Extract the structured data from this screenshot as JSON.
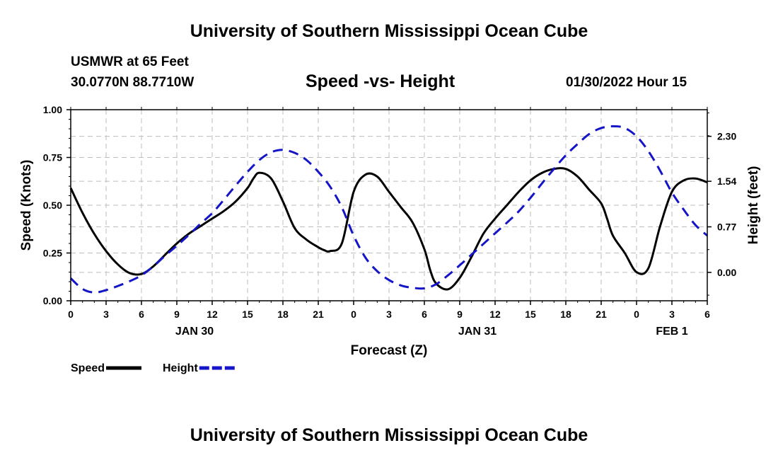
{
  "header": {
    "title": "University of Southern Mississippi Ocean Cube",
    "station": "USMWR at 65 Feet",
    "coords": "30.0770N  88.7710W",
    "datetime": "01/30/2022 Hour 15"
  },
  "footer": {
    "title": "University of Southern Mississippi Ocean Cube"
  },
  "colors": {
    "speed": "#000000",
    "height": "#1515c8",
    "grid": "#bdbdbd"
  },
  "chart_data": {
    "type": "line",
    "title": "Speed -vs- Height",
    "xlabel": "Forecast (Z)",
    "ylabel": "Speed (Knots)",
    "y2label": "Height (feet)",
    "xlim": [
      0,
      54
    ],
    "ylim": [
      0,
      1
    ],
    "y2lim": [
      -0.48,
      2.75
    ],
    "x_tick_labels": [
      "0",
      "3",
      "6",
      "9",
      "12",
      "15",
      "18",
      "21",
      "0",
      "3",
      "6",
      "9",
      "12",
      "15",
      "18",
      "21",
      "0",
      "3",
      "6"
    ],
    "y_ticks": [
      0,
      0.25,
      0.5,
      0.75,
      1.0
    ],
    "y_tick_labels": [
      "0.00",
      "0.25",
      "0.50",
      "0.75",
      "1.00"
    ],
    "y2_ticks": [
      0,
      0.77,
      1.54,
      2.3
    ],
    "y2_tick_labels": [
      "0.00",
      "0.77",
      "1.54",
      "2.30"
    ],
    "date_labels": [
      {
        "text": "JAN 30",
        "x": 10.5
      },
      {
        "text": "JAN 31",
        "x": 34.5
      },
      {
        "text": "FEB 1",
        "x": 51
      }
    ],
    "grid": true,
    "legend_position": "bottom-left",
    "series": [
      {
        "name": "Speed",
        "axis": "left",
        "style": "solid",
        "x": [
          0,
          1,
          2,
          3,
          4,
          5,
          6,
          7,
          8,
          9,
          10,
          11,
          12,
          13,
          14,
          15,
          15.5,
          16,
          17,
          18,
          19,
          20,
          21,
          21.5,
          22,
          23,
          24,
          25,
          26,
          27,
          28,
          29,
          30,
          30.5,
          31,
          32,
          33,
          34,
          35,
          36,
          37,
          38,
          39,
          40,
          41,
          42,
          43,
          44,
          45,
          45.5,
          46,
          47,
          48,
          49,
          50,
          51,
          52,
          53,
          54
        ],
        "values": [
          0.59,
          0.46,
          0.35,
          0.26,
          0.19,
          0.145,
          0.14,
          0.18,
          0.24,
          0.3,
          0.35,
          0.39,
          0.43,
          0.47,
          0.52,
          0.59,
          0.64,
          0.67,
          0.64,
          0.52,
          0.38,
          0.32,
          0.28,
          0.265,
          0.26,
          0.3,
          0.57,
          0.66,
          0.65,
          0.57,
          0.49,
          0.41,
          0.27,
          0.16,
          0.09,
          0.06,
          0.12,
          0.23,
          0.35,
          0.43,
          0.5,
          0.57,
          0.63,
          0.67,
          0.69,
          0.69,
          0.65,
          0.58,
          0.51,
          0.43,
          0.34,
          0.25,
          0.15,
          0.17,
          0.39,
          0.57,
          0.63,
          0.64,
          0.62
        ]
      },
      {
        "name": "Height",
        "axis": "right",
        "style": "dashed",
        "x": [
          0,
          1,
          2,
          3,
          4,
          5,
          6,
          7,
          8,
          9,
          10,
          11,
          12,
          13,
          14,
          15,
          16,
          17,
          18,
          19,
          20,
          21,
          22,
          23,
          24,
          25,
          26,
          27,
          28,
          29,
          30,
          31,
          32,
          33,
          34,
          35,
          36,
          37,
          38,
          39,
          40,
          41,
          42,
          43,
          44,
          45,
          46,
          47,
          48,
          49,
          50,
          51,
          52,
          53,
          54
        ],
        "values": [
          -0.1,
          -0.28,
          -0.34,
          -0.3,
          -0.23,
          -0.15,
          -0.05,
          0.1,
          0.28,
          0.45,
          0.63,
          0.82,
          1.0,
          1.23,
          1.47,
          1.7,
          1.9,
          2.03,
          2.07,
          2.02,
          1.9,
          1.7,
          1.45,
          1.1,
          0.62,
          0.25,
          0.02,
          -0.13,
          -0.22,
          -0.26,
          -0.27,
          -0.2,
          -0.05,
          0.12,
          0.3,
          0.48,
          0.66,
          0.84,
          1.03,
          1.26,
          1.51,
          1.75,
          1.98,
          2.17,
          2.34,
          2.44,
          2.47,
          2.44,
          2.3,
          2.05,
          1.72,
          1.35,
          1.06,
          0.8,
          0.62
        ]
      }
    ]
  },
  "legend": {
    "items": [
      {
        "label": "Speed",
        "series": "Speed"
      },
      {
        "label": "Height",
        "series": "Height"
      }
    ]
  }
}
